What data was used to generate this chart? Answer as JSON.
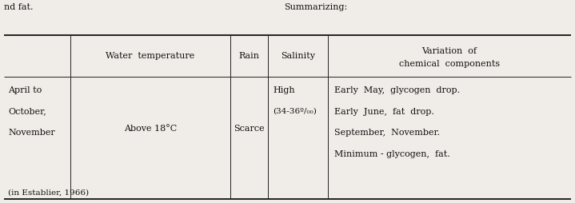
{
  "top_left_text": "nd fat.",
  "top_right_text": "Summarizing:",
  "header_col1": "Water  temperature",
  "header_col2": "Rain",
  "header_col3": "Salinity",
  "header_col4_line1": "Variation  of",
  "header_col4_line2": "chemical  components",
  "row_col0_line1": "April to",
  "row_col0_line2": "October,",
  "row_col0_line3": "November",
  "row_col0_line4": "(in Establier, 1966)",
  "row_col1": "Above 18°C",
  "row_col2": "Scarce",
  "row_col3_line1": "High",
  "row_col3_line2": "(34-36º/₀₀)",
  "row_col4_line1": "Early  May,  glycogen  drop.",
  "row_col4_line2": "Early  June,  fat  drop.",
  "row_col4_line3": "September,  November.",
  "row_col4_line4": "Minimum - glycogen,  fat.",
  "bg_color": "#f0ede8",
  "text_color": "#111111",
  "line_color": "#222222",
  "font_size": 8.0
}
